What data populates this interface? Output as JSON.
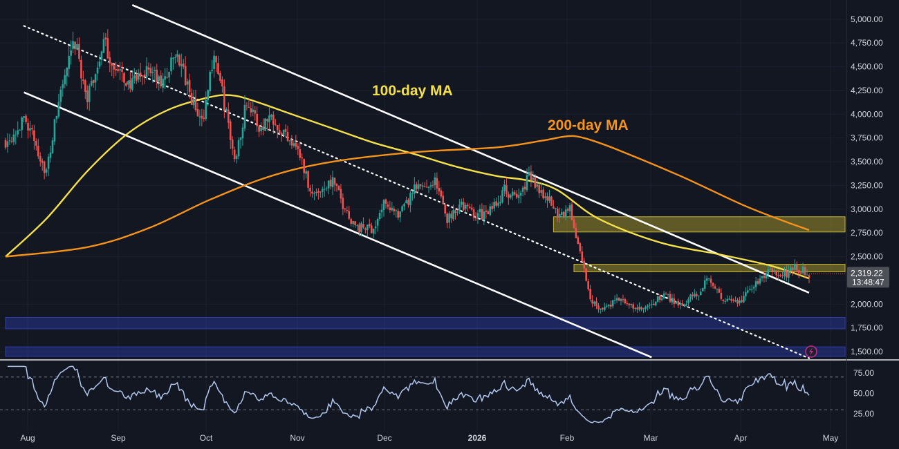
{
  "chart_data": {
    "type": "candlestick",
    "x_ticks": [
      "Aug",
      "Sep",
      "Oct",
      "Nov",
      "Dec",
      "2026",
      "Feb",
      "Mar",
      "Apr",
      "May"
    ],
    "price_axis": {
      "ticks": [
        "5,000.00",
        "4,750.00",
        "4,500.00",
        "4,250.00",
        "4,000.00",
        "3,750.00",
        "3,500.00",
        "3,250.00",
        "3,000.00",
        "2,750.00",
        "2,500.00",
        "2,250.00",
        "2,000.00",
        "1,750.00",
        "1,500.00"
      ],
      "ylim": [
        1420,
        5130
      ]
    },
    "last_price": {
      "value": "2,319.22",
      "countdown": "13:48:47"
    },
    "annotations": [
      {
        "text": "100-day MA",
        "color": "#f5e04a"
      },
      {
        "text": "200-day MA",
        "color": "#f7931a"
      }
    ],
    "rsi": {
      "ticks": [
        "75.00",
        "50.00",
        "25.00"
      ],
      "ylim": [
        10,
        85
      ],
      "bands": [
        70,
        30
      ]
    },
    "close_path": [
      [
        0,
        3720
      ],
      [
        10,
        3950
      ],
      [
        20,
        3380
      ],
      [
        27,
        4250
      ],
      [
        34,
        4750
      ],
      [
        40,
        4150
      ],
      [
        48,
        4750
      ],
      [
        54,
        4450
      ],
      [
        62,
        4300
      ],
      [
        70,
        4500
      ],
      [
        76,
        4300
      ],
      [
        84,
        4650
      ],
      [
        90,
        4200
      ],
      [
        96,
        3900
      ],
      [
        102,
        4650
      ],
      [
        108,
        4000
      ],
      [
        112,
        3500
      ],
      [
        118,
        4150
      ],
      [
        124,
        3850
      ],
      [
        130,
        4000
      ],
      [
        136,
        3800
      ],
      [
        142,
        3700
      ],
      [
        150,
        3150
      ],
      [
        160,
        3300
      ],
      [
        166,
        3000
      ],
      [
        172,
        2800
      ],
      [
        180,
        2800
      ],
      [
        186,
        3100
      ],
      [
        192,
        2900
      ],
      [
        200,
        3200
      ],
      [
        210,
        3300
      ],
      [
        216,
        2900
      ],
      [
        222,
        3050
      ],
      [
        230,
        2950
      ],
      [
        236,
        2950
      ],
      [
        244,
        3200
      ],
      [
        250,
        3100
      ],
      [
        256,
        3350
      ],
      [
        264,
        3150
      ],
      [
        270,
        2950
      ],
      [
        276,
        3000
      ],
      [
        282,
        2450
      ],
      [
        286,
        2050
      ],
      [
        292,
        1950
      ],
      [
        300,
        2050
      ],
      [
        308,
        1950
      ],
      [
        314,
        1950
      ],
      [
        322,
        2100
      ],
      [
        330,
        2000
      ],
      [
        338,
        2100
      ],
      [
        344,
        2300
      ],
      [
        350,
        2050
      ],
      [
        358,
        2000
      ],
      [
        366,
        2200
      ],
      [
        374,
        2350
      ],
      [
        380,
        2300
      ],
      [
        386,
        2380
      ],
      [
        390,
        2350
      ],
      [
        393,
        2320
      ]
    ],
    "series": [
      {
        "name": "100-day MA",
        "color": "#f5e04a",
        "points": [
          [
            0,
            2500
          ],
          [
            20,
            2900
          ],
          [
            40,
            3400
          ],
          [
            60,
            3800
          ],
          [
            80,
            4050
          ],
          [
            100,
            4180
          ],
          [
            110,
            4200
          ],
          [
            120,
            4150
          ],
          [
            140,
            4000
          ],
          [
            160,
            3850
          ],
          [
            180,
            3700
          ],
          [
            200,
            3580
          ],
          [
            220,
            3450
          ],
          [
            240,
            3350
          ],
          [
            256,
            3300
          ],
          [
            270,
            3200
          ],
          [
            290,
            2900
          ],
          [
            320,
            2650
          ],
          [
            350,
            2520
          ],
          [
            375,
            2400
          ],
          [
            393,
            2270
          ]
        ]
      },
      {
        "name": "200-day MA",
        "color": "#f7931a",
        "points": [
          [
            0,
            2500
          ],
          [
            40,
            2600
          ],
          [
            70,
            2800
          ],
          [
            100,
            3100
          ],
          [
            130,
            3350
          ],
          [
            160,
            3500
          ],
          [
            200,
            3600
          ],
          [
            240,
            3650
          ],
          [
            262,
            3720
          ],
          [
            272,
            3760
          ],
          [
            278,
            3770
          ],
          [
            286,
            3730
          ],
          [
            300,
            3620
          ],
          [
            330,
            3350
          ],
          [
            360,
            3050
          ],
          [
            380,
            2880
          ],
          [
            393,
            2780
          ]
        ]
      }
    ],
    "channel_lines": [
      {
        "kind": "solid",
        "points": [
          [
            62,
            5150
          ],
          [
            393,
            2120
          ]
        ]
      },
      {
        "kind": "solid",
        "points": [
          [
            9,
            4230
          ],
          [
            316,
            1440
          ]
        ]
      },
      {
        "kind": "dotted",
        "points": [
          [
            9,
            4930
          ],
          [
            393,
            1430
          ]
        ]
      }
    ],
    "zones": [
      {
        "color": "#c8b632",
        "from": 2760,
        "to": 2920,
        "x_start": 268
      },
      {
        "color": "#c8b632",
        "from": 2340,
        "to": 2420,
        "x_start": 278
      },
      {
        "color": "#2b3fb0",
        "from": 1740,
        "to": 1860,
        "x_start": 0
      },
      {
        "color": "#2b3fb0",
        "from": 1450,
        "to": 1550,
        "x_start": 0
      }
    ]
  }
}
